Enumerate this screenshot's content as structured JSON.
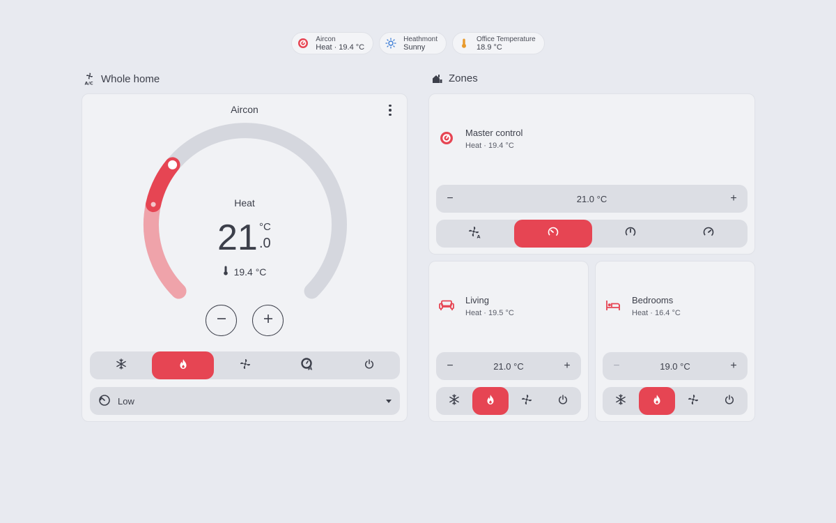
{
  "chips": [
    {
      "label": "Aircon",
      "state": "Heat · 19.4 °C",
      "icon": "thermostat-heat-icon"
    },
    {
      "label": "Heathmont",
      "state": "Sunny",
      "icon": "sunny-icon"
    },
    {
      "label": "Office Temperature",
      "state": "18.9 °C",
      "icon": "thermometer-icon"
    }
  ],
  "whole_home": {
    "heading": "Whole home",
    "card": {
      "name": "Aircon",
      "mode": "Heat",
      "target_int": "21",
      "target_dec": ".0",
      "unit": "°C",
      "current": "19.4 °C",
      "target_value": 21.0,
      "current_value": 19.4,
      "range_min": 16,
      "range_max": 32,
      "modes": [
        "cool",
        "heat",
        "fan",
        "auto",
        "off"
      ],
      "active_mode": "heat",
      "fan_mode": "Low"
    }
  },
  "zones": {
    "heading": "Zones",
    "master": {
      "name": "Master control",
      "state": "Heat · 19.4 °C",
      "target": "21.0 °C",
      "fan_modes": [
        "auto-fan",
        "low",
        "medium",
        "high"
      ],
      "active_fan": "low"
    },
    "living": {
      "name": "Living",
      "state": "Heat · 19.5 °C",
      "target": "21.0 °C"
    },
    "bedrooms": {
      "name": "Bedrooms",
      "state": "Heat · 16.4 °C",
      "target": "19.0 °C"
    }
  },
  "colors": {
    "accent": "#e64553",
    "accent_light": "#efa3aa",
    "track": "#d5d7de",
    "text": "#3c3f4a",
    "sun": "#3a7bd5",
    "thermo": "#e89a2c"
  }
}
